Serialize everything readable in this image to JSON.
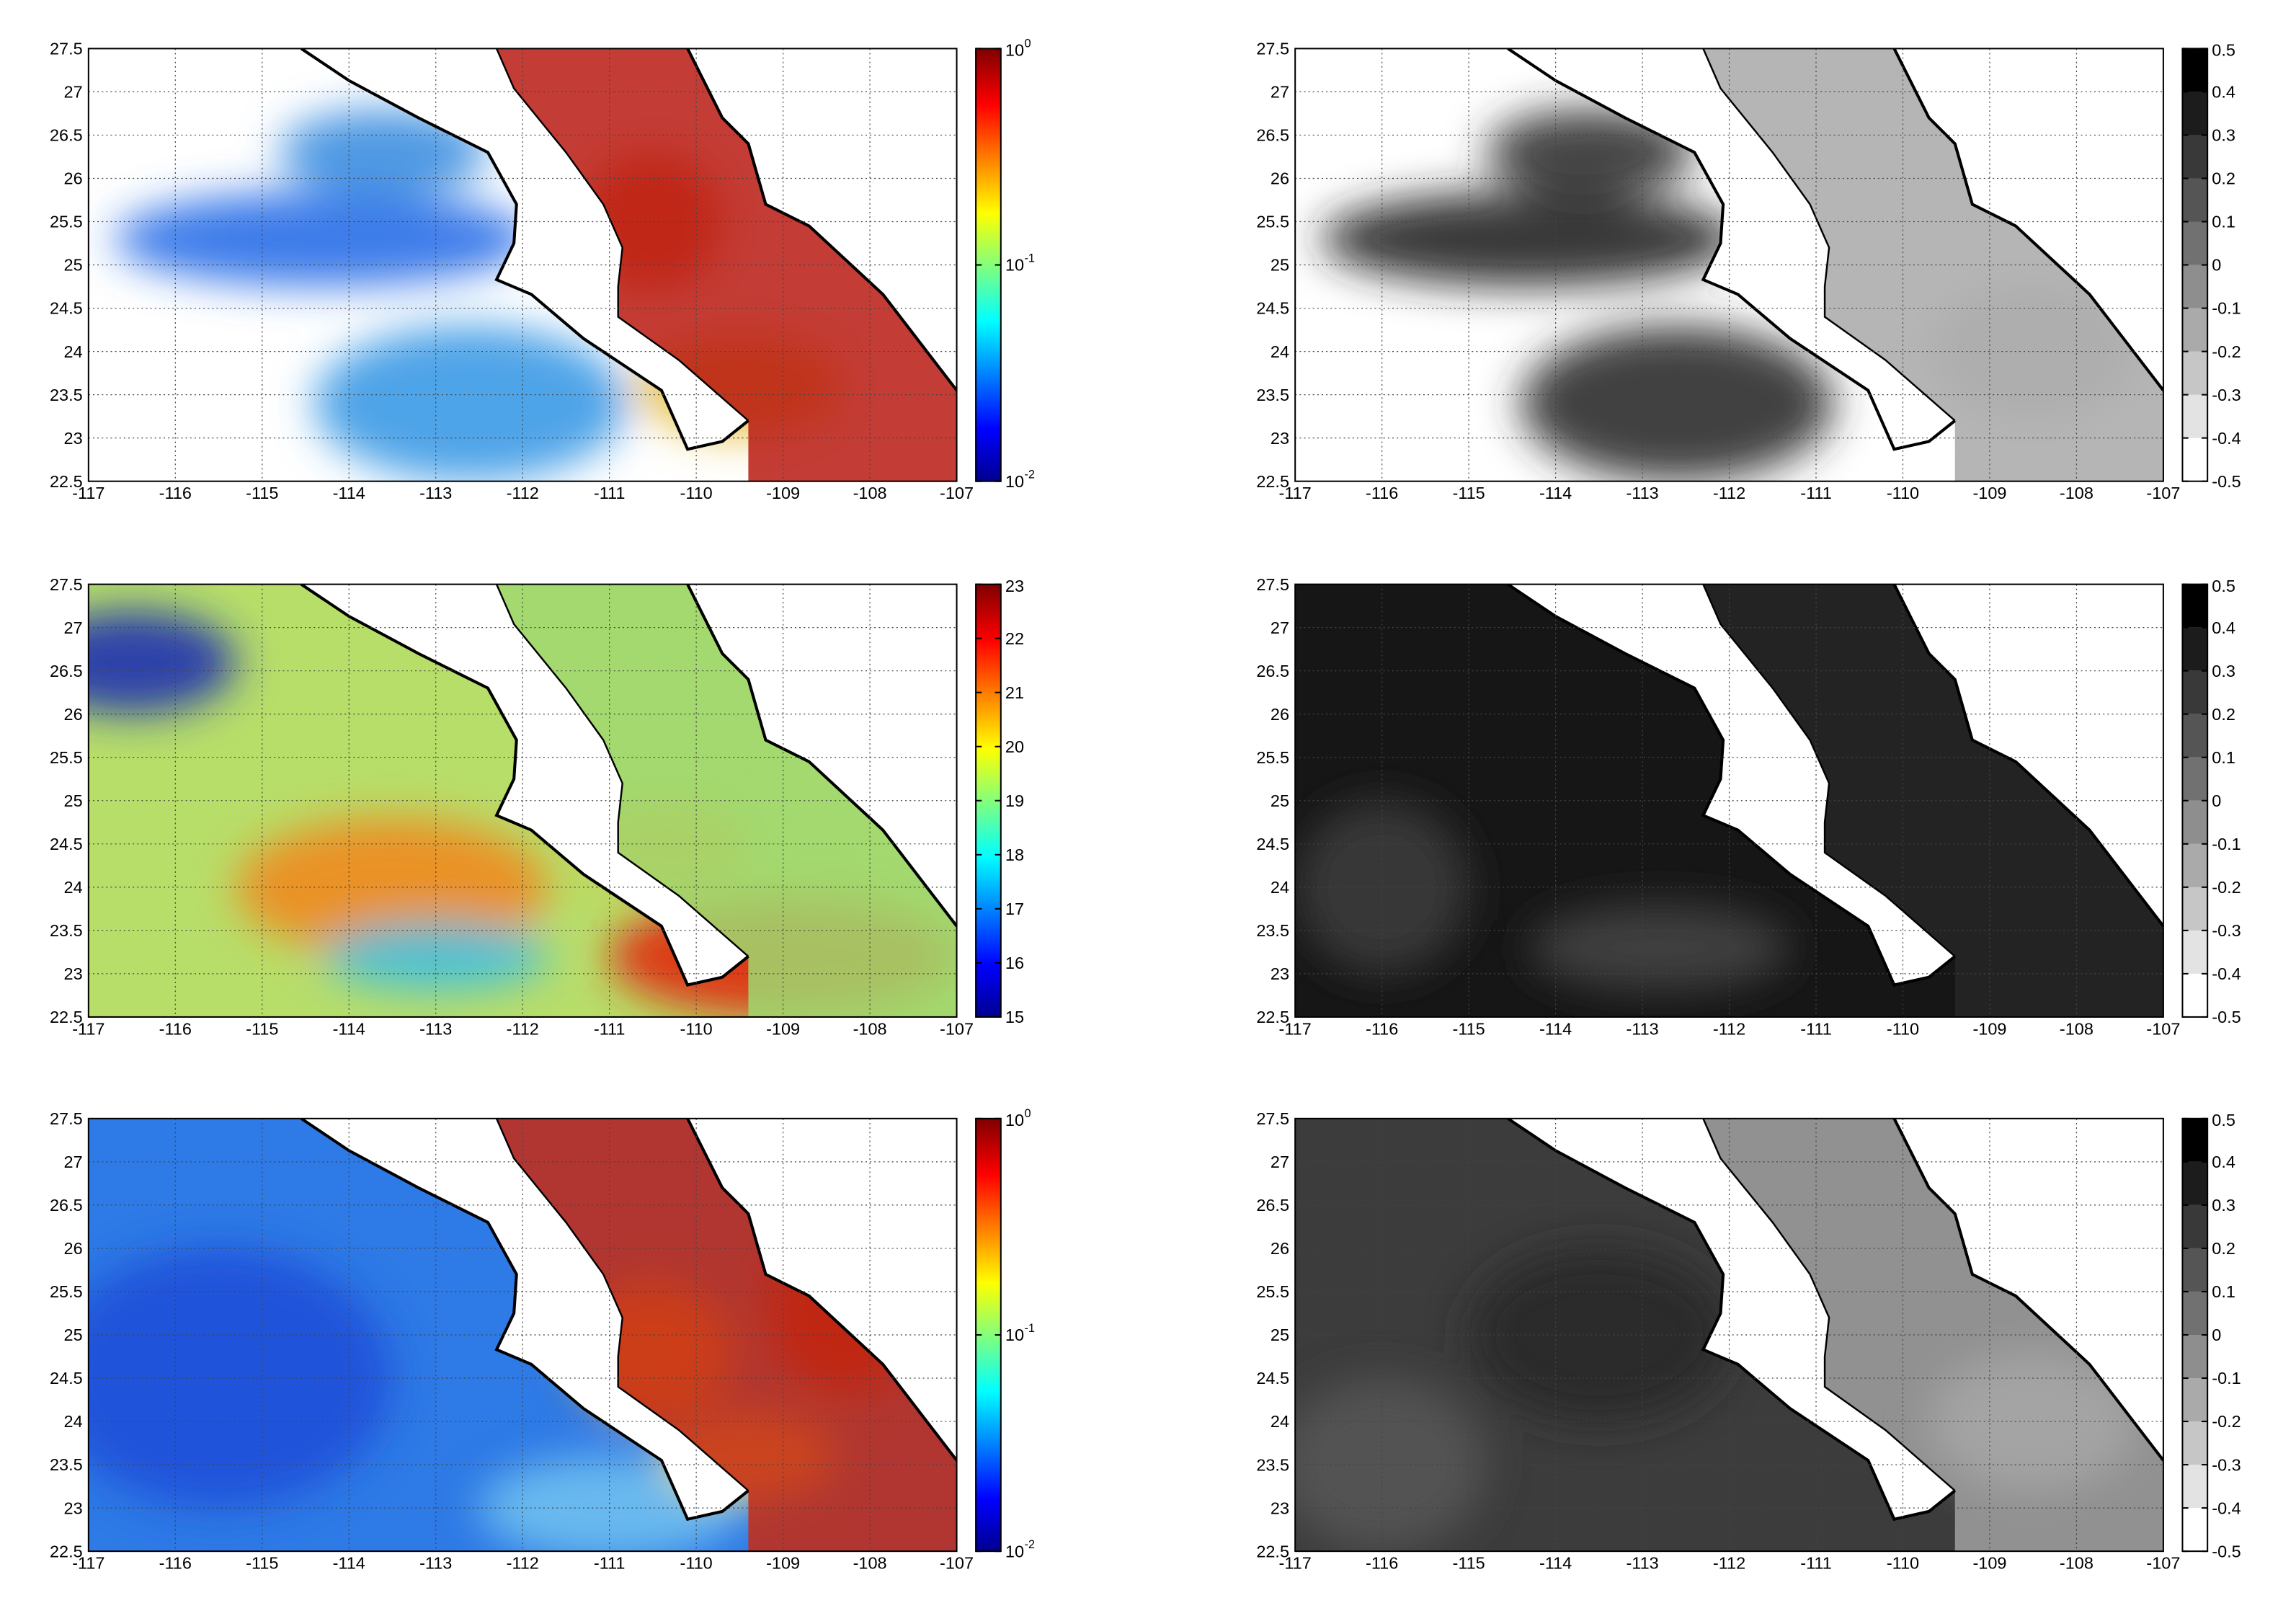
{
  "panels": [
    {
      "xlim": [
        -117,
        -107
      ],
      "ylim": [
        22.5,
        27.5
      ],
      "xticks": [
        -117,
        -116,
        -115,
        -114,
        -113,
        -112,
        -111,
        -110,
        -109,
        -108,
        -107
      ],
      "yticks": [
        22.5,
        23,
        23.5,
        24,
        24.5,
        25,
        25.5,
        26,
        26.5,
        27,
        27.5
      ],
      "colorbar": {
        "colormap": "jet",
        "scale": "log",
        "lim": [
          0.01,
          1
        ],
        "ticks": [
          {
            "value": 0.01,
            "label": "10",
            "exponent": "-2"
          },
          {
            "value": 0.1,
            "label": "10",
            "exponent": "-1"
          },
          {
            "value": 1,
            "label": "10",
            "exponent": "0"
          }
        ]
      }
    },
    {
      "xlim": [
        -117,
        -107
      ],
      "ylim": [
        22.5,
        27.5
      ],
      "xticks": [
        -117,
        -116,
        -115,
        -114,
        -113,
        -112,
        -111,
        -110,
        -109,
        -108,
        -107
      ],
      "yticks": [
        22.5,
        23,
        23.5,
        24,
        24.5,
        25,
        25.5,
        26,
        26.5,
        27,
        27.5
      ],
      "colorbar": {
        "colormap": "gray",
        "scale": "linear",
        "lim": [
          -0.5,
          0.5
        ],
        "ticks": [
          -0.5,
          -0.4,
          -0.3,
          -0.2,
          -0.1,
          0,
          0.1,
          0.2,
          0.3,
          0.4,
          0.5
        ]
      }
    },
    {
      "xlim": [
        -117,
        -107
      ],
      "ylim": [
        22.5,
        27.5
      ],
      "xticks": [
        -117,
        -116,
        -115,
        -114,
        -113,
        -112,
        -111,
        -110,
        -109,
        -108,
        -107
      ],
      "yticks": [
        22.5,
        23,
        23.5,
        24,
        24.5,
        25,
        25.5,
        26,
        26.5,
        27,
        27.5
      ],
      "colorbar": {
        "colormap": "jet",
        "scale": "linear",
        "lim": [
          15,
          23
        ],
        "ticks": [
          15,
          16,
          17,
          18,
          19,
          20,
          21,
          22,
          23
        ]
      }
    },
    {
      "xlim": [
        -117,
        -107
      ],
      "ylim": [
        22.5,
        27.5
      ],
      "xticks": [
        -117,
        -116,
        -115,
        -114,
        -113,
        -112,
        -111,
        -110,
        -109,
        -108,
        -107
      ],
      "yticks": [
        22.5,
        23,
        23.5,
        24,
        24.5,
        25,
        25.5,
        26,
        26.5,
        27,
        27.5
      ],
      "colorbar": {
        "colormap": "gray",
        "scale": "linear",
        "lim": [
          -0.5,
          0.5
        ],
        "ticks": [
          -0.5,
          -0.4,
          -0.3,
          -0.2,
          -0.1,
          0,
          0.1,
          0.2,
          0.3,
          0.4,
          0.5
        ]
      }
    },
    {
      "xlim": [
        -117,
        -107
      ],
      "ylim": [
        22.5,
        27.5
      ],
      "xticks": [
        -117,
        -116,
        -115,
        -114,
        -113,
        -112,
        -111,
        -110,
        -109,
        -108,
        -107
      ],
      "yticks": [
        22.5,
        23,
        23.5,
        24,
        24.5,
        25,
        25.5,
        26,
        26.5,
        27,
        27.5
      ],
      "colorbar": {
        "colormap": "jet",
        "scale": "log",
        "lim": [
          0.01,
          1
        ],
        "ticks": [
          {
            "value": 0.01,
            "label": "10",
            "exponent": "-2"
          },
          {
            "value": 0.1,
            "label": "10",
            "exponent": "-1"
          },
          {
            "value": 1,
            "label": "10",
            "exponent": "0"
          }
        ]
      }
    },
    {
      "xlim": [
        -117,
        -107
      ],
      "ylim": [
        22.5,
        27.5
      ],
      "xticks": [
        -117,
        -116,
        -115,
        -114,
        -113,
        -112,
        -111,
        -110,
        -109,
        -108,
        -107
      ],
      "yticks": [
        22.5,
        23,
        23.5,
        24,
        24.5,
        25,
        25.5,
        26,
        26.5,
        27,
        27.5
      ],
      "colorbar": {
        "colormap": "gray",
        "scale": "linear",
        "lim": [
          -0.5,
          0.5
        ],
        "ticks": [
          -0.5,
          -0.4,
          -0.3,
          -0.2,
          -0.1,
          0,
          0.1,
          0.2,
          0.3,
          0.4,
          0.5
        ]
      }
    }
  ]
}
